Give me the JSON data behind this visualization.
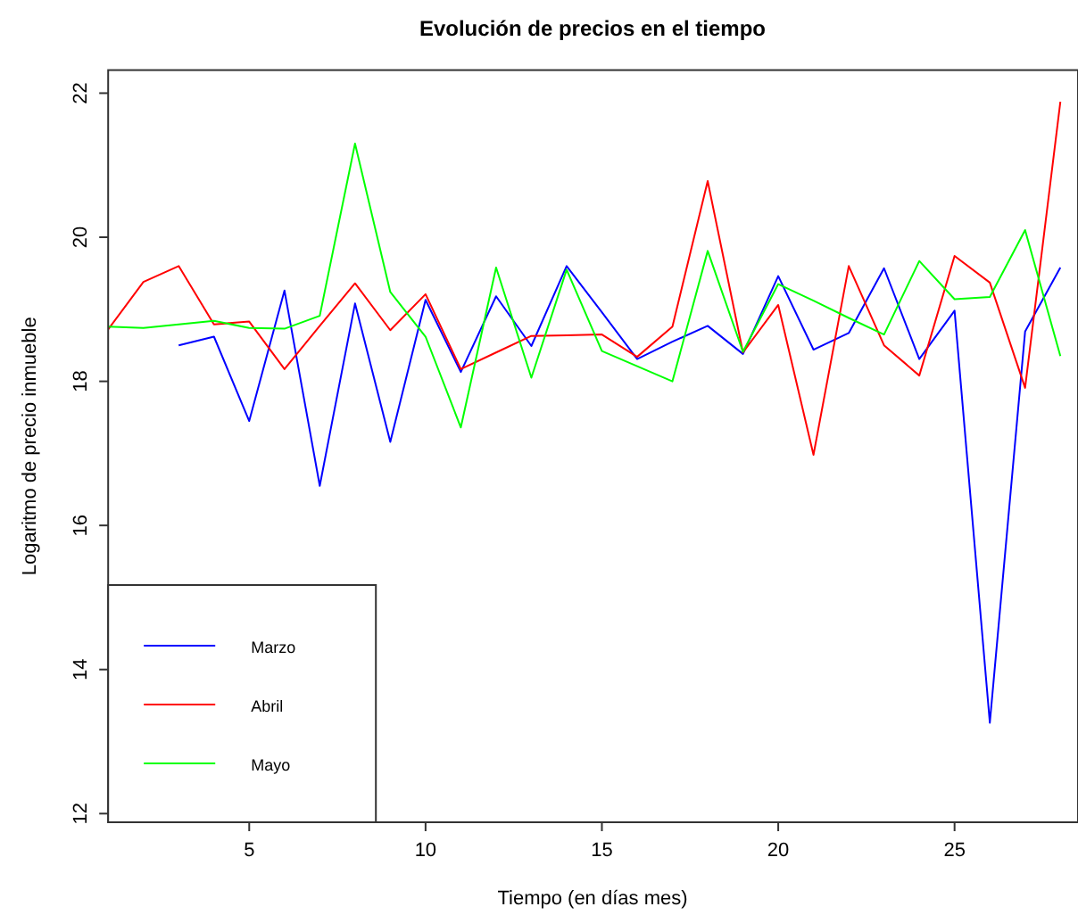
{
  "chart_data": {
    "type": "line",
    "title": "Evolución de precios en el tiempo",
    "xlabel": "Tiempo (en días mes)",
    "ylabel": "Logaritmo de precio inmueble",
    "x": [
      1,
      2,
      3,
      4,
      5,
      6,
      7,
      8,
      9,
      10,
      11,
      12,
      13,
      14,
      15,
      16,
      17,
      18,
      19,
      20,
      21,
      22,
      23,
      24,
      25,
      26,
      27,
      28
    ],
    "series": [
      {
        "name": "Marzo",
        "color": "#0000ff",
        "values": [
          null,
          null,
          18.5,
          18.62,
          17.45,
          19.26,
          16.55,
          19.08,
          17.16,
          19.13,
          18.13,
          19.18,
          18.49,
          19.6,
          18.96,
          18.31,
          18.55,
          18.77,
          18.38,
          19.46,
          18.44,
          18.67,
          19.57,
          18.31,
          18.98,
          13.26,
          18.69,
          19.58
        ]
      },
      {
        "name": "Abril",
        "color": "#ff0000",
        "values": [
          18.72,
          19.38,
          19.6,
          18.79,
          18.83,
          18.17,
          18.77,
          19.36,
          18.71,
          19.21,
          18.17,
          18.4,
          18.63,
          18.64,
          18.65,
          18.34,
          18.76,
          20.78,
          18.4,
          19.06,
          16.98,
          19.6,
          18.5,
          18.08,
          19.74,
          19.37,
          17.91,
          21.88
        ]
      },
      {
        "name": "Mayo",
        "color": "#00ff00",
        "values": [
          18.76,
          18.74,
          18.79,
          18.84,
          18.74,
          18.73,
          18.91,
          21.3,
          19.24,
          18.62,
          17.36,
          19.58,
          18.05,
          19.55,
          18.42,
          18.21,
          18,
          19.81,
          18.41,
          19.35,
          19.12,
          18.88,
          18.65,
          19.67,
          19.14,
          19.17,
          20.1,
          18.35
        ]
      }
    ],
    "xlim": [
      1,
      28.5
    ],
    "ylim": [
      11.88,
      22.32
    ],
    "xticks": [
      5,
      10,
      15,
      20,
      25
    ],
    "yticks": [
      12,
      14,
      16,
      18,
      20,
      22
    ],
    "legend": "bottom left",
    "grid": false,
    "marker": "none",
    "line_style": "solid"
  }
}
